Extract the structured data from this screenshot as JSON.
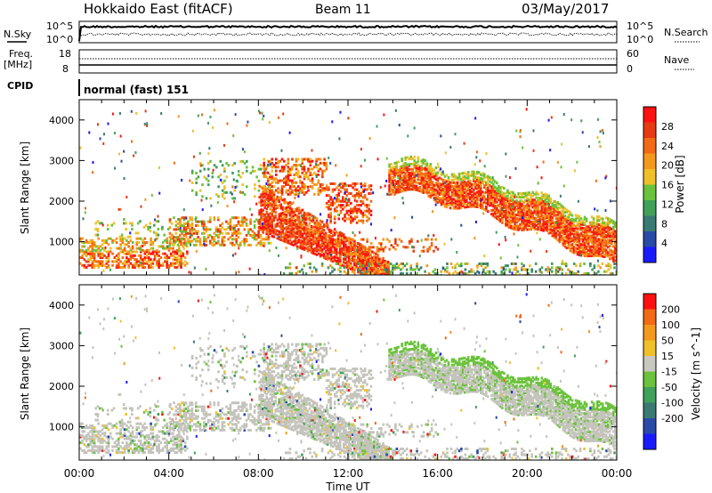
{
  "header": {
    "title": "Hokkaido East (fitACF)",
    "beam": "Beam 11",
    "date": "03/May/2017"
  },
  "strip": {
    "nsky_label": "N.Sky",
    "nsearch_label": "N.Search",
    "nsky_ticks": [
      "10^5",
      "10^0"
    ],
    "nsky_ticks_right": [
      "10^5",
      "10^0"
    ],
    "freq_label": "Freq.",
    "freq_unit": "[MHz]",
    "freq_ticks": [
      "18",
      "8"
    ],
    "nave_label": "Nave",
    "nave_ticks": [
      "60",
      "0"
    ],
    "cpid_label": "CPID",
    "cpid_value": "normal (fast) 151"
  },
  "chart_data": [
    {
      "type": "heatmap",
      "name": "power-panel",
      "ylabel": "Slant Range [km]",
      "xlabel": "",
      "xlim_hours": [
        0,
        24
      ],
      "ylim_km": [
        180,
        4500
      ],
      "y_ticks": [
        "1000",
        "2000",
        "3000",
        "4000"
      ],
      "colorbar": {
        "label": "Power [dB]",
        "ticks": [
          "4",
          "8",
          "12",
          "16",
          "20",
          "24",
          "28"
        ],
        "colors": [
          "#1a1aff",
          "#2a4aa8",
          "#3a7a72",
          "#41a05a",
          "#6cc23c",
          "#f0c02a",
          "#f4991c",
          "#f36a14",
          "#e63a12",
          "#ff1010"
        ]
      },
      "features": [
        {
          "x": [
            0,
            4.7
          ],
          "range_km": [
            200,
            1100
          ],
          "level": "8-24 dB"
        },
        {
          "x": [
            4,
            9.5
          ],
          "range_km": [
            700,
            1700
          ],
          "level": "12-24 dB"
        },
        {
          "x": [
            8,
            13.7
          ],
          "range_km": [
            400,
            3200
          ],
          "level": "20-30 dB"
        },
        {
          "x": [
            13.8,
            24
          ],
          "range_km": [
            1200,
            2900
          ],
          "level": "20-30 dB"
        }
      ]
    },
    {
      "type": "heatmap",
      "name": "velocity-panel",
      "ylabel": "Slant Range [km]",
      "xlabel": "Time UT",
      "xlim_hours": [
        0,
        24
      ],
      "ylim_km": [
        180,
        4500
      ],
      "y_ticks": [
        "1000",
        "2000",
        "3000",
        "4000"
      ],
      "x_ticks": [
        "00:00",
        "04:00",
        "08:00",
        "12:00",
        "16:00",
        "20:00",
        "00:00"
      ],
      "colorbar": {
        "label": "Velocity [m s^-1]",
        "ticks": [
          "200",
          "100",
          "50",
          "15",
          "-15",
          "-50",
          "-100",
          "-200"
        ],
        "colors": [
          "#1a1aff",
          "#2a4aa8",
          "#3a7a72",
          "#41a05a",
          "#6cc23c",
          "#c8c8c0",
          "#f0c02a",
          "#f4991c",
          "#f36a14",
          "#ff1010"
        ]
      },
      "features": [
        {
          "x": [
            0,
            13.7
          ],
          "range_km": [
            300,
            3100
          ],
          "level": "-15 to 15 m/s"
        },
        {
          "x": [
            13.8,
            24
          ],
          "range_km": [
            1200,
            2900
          ],
          "level": "-15 to 50 m/s"
        }
      ]
    }
  ]
}
